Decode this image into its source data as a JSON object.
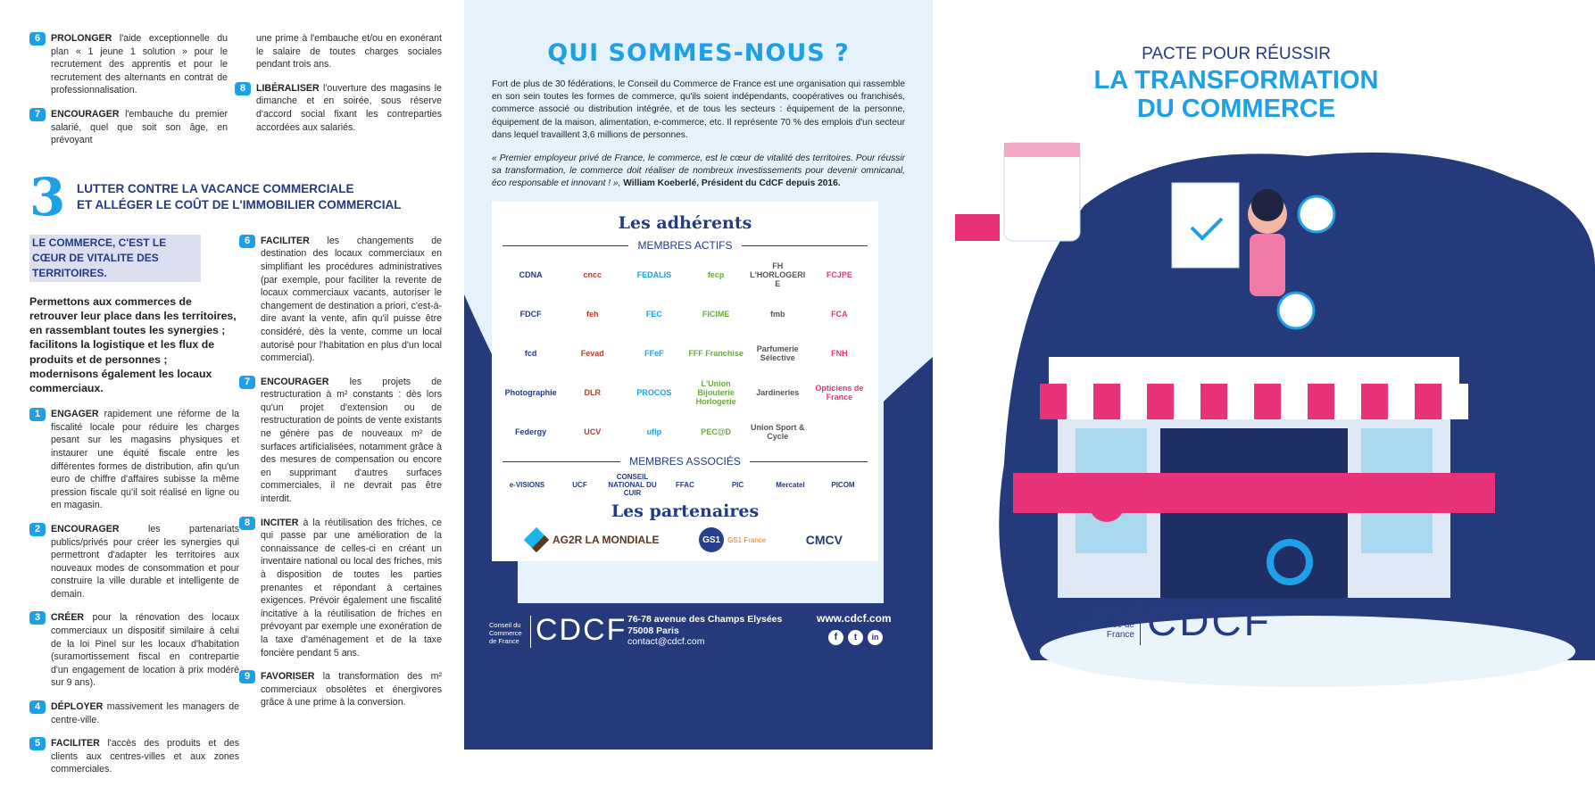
{
  "left": {
    "top_items": [
      {
        "num": "6",
        "verb": "PROLONGER",
        "text": " l'aide exceptionnelle du plan « 1 jeune 1 solution » pour le recrutement des apprentis et pour le recrutement des alternants en contrat de professionnalisation."
      },
      {
        "num": "7",
        "verb": "ENCOURAGER",
        "text": " l'embauche du premier salarié, quel que soit son âge, en prévoyant"
      },
      {
        "num": "",
        "verb": "",
        "text": "une prime à l'embauche et/ou en exonérant le salaire de toutes charges sociales pendant trois ans."
      },
      {
        "num": "8",
        "verb": "LIBÉRALISER",
        "text": " l'ouverture des magasins le dimanche et en soirée, sous réserve d'accord social fixant les contreparties accordées aux salariés."
      }
    ],
    "section3": {
      "number": "3",
      "title_line1": "LUTTER CONTRE LA VACANCE COMMERCIALE",
      "title_line2": "ET ALLÉGER LE COÛT DE L'IMMOBILIER COMMERCIAL",
      "highlight": "LE COMMERCE, C'EST LE CŒUR DE VITALITE DES TERRITOIRES.",
      "lead": "Permettons aux commerces de retrouver leur place dans les territoires, en rassemblant toutes les synergies ; facilitons la logistique et les flux de produits et de personnes ; modernisons également les locaux commerciaux.",
      "items": [
        {
          "num": "1",
          "verb": "ENGAGER",
          "text": " rapidement une réforme de la fiscalité locale pour réduire les charges pesant sur les magasins physiques et instaurer une équité fiscale entre les différentes formes de distribution, afin qu'un euro de chiffre d'affaires subisse la même pression fiscale qu'il soit réalisé en ligne ou en magasin."
        },
        {
          "num": "2",
          "verb": "ENCOURAGER",
          "text": " les partenariats publics/privés pour créer les synergies qui permettront d'adapter les territoires aux nouveaux modes de consommation et pour construire la ville durable et intelligente de demain."
        },
        {
          "num": "3",
          "verb": "CRÉER",
          "text": " pour la rénovation des locaux commerciaux un dispositif similaire à celui de la loi Pinel sur les locaux d'habitation (suramortissement fiscal en contrepartie d'un engagement de location à prix modéré sur 9 ans)."
        },
        {
          "num": "4",
          "verb": "DÉPLOYER",
          "text": " massivement les managers de centre-ville."
        },
        {
          "num": "5",
          "verb": "FACILITER",
          "text": " l'accès des produits et des clients aux centres-villes et aux zones commerciales."
        },
        {
          "num": "6",
          "verb": "FACILITER",
          "text": " les changements de destination des locaux commerciaux en simplifiant les procédures administratives (par exemple, pour faciliter la revente de locaux commerciaux vacants, autoriser le changement de destination a priori, c'est-à-dire avant la vente, afin qu'il puisse être considéré, dès la vente, comme un local autorisé pour l'habitation en plus d'un local commercial)."
        },
        {
          "num": "7",
          "verb": "ENCOURAGER",
          "text": " les projets de restructuration à m² constants : dès lors qu'un projet d'extension ou de restructuration de points de vente existants ne génère pas de nouveaux m² de surfaces artificialisées, notamment grâce à des mesures de compensation ou encore en supprimant d'autres surfaces commerciales, il ne devrait pas être interdit."
        },
        {
          "num": "8",
          "verb": "INCITER",
          "text": " à la réutilisation des friches, ce qui passe par une amélioration de la connaissance de celles-ci en créant un inventaire national ou local des friches, mis à disposition de toutes les parties prenantes et répondant à certaines exigences. Prévoir également une fiscalité incitative à la réutilisation de friches en prévoyant par exemple une exonération de la taxe d'aménagement et de la taxe foncière pendant 5 ans."
        },
        {
          "num": "9",
          "verb": "FAVORISER",
          "text": " la transformation des m² commerciaux obsolètes et énergivores grâce à une prime à la conversion."
        }
      ]
    }
  },
  "center": {
    "title": "QUI SOMMES-NOUS ?",
    "intro": "Fort de plus de 30 fédérations, le Conseil du Commerce de France est une organisation qui rassemble en son sein toutes les formes de commerce, qu'ils soient indépendants, coopératives ou franchisés, commerce associé ou distribution intégrée, et de tous les secteurs : équipement de la personne, équipement de la maison, alimentation, e-commerce, etc. Il représente 70 % des emplois d'un secteur dans lequel travaillent 3,6 millions de personnes.",
    "quote": "« Premier employeur privé de France, le commerce, est le cœur de vitalité des territoires. Pour réussir sa transformation, le commerce doit réaliser de nombreux investissements pour devenir omnicanal, éco responsable et innovant ! »,",
    "quote_author": " William Koeberlé, Président du CdCF depuis 2016.",
    "adherents_title": "Les adhérents",
    "actifs_label": "MEMBRES ACTIFS",
    "actifs": [
      "CDNA",
      "cncc",
      "FEDALIS",
      "fecp",
      "FH L'HORLOGERIE",
      "FCJPE",
      "FDCF",
      "feh",
      "FEC",
      "FICIME",
      "fmb",
      "FCA",
      "fcd",
      "Fevad",
      "FFeF",
      "FFF Franchise",
      "Parfumerie Sélective",
      "FNH",
      "Photographie",
      "DLR",
      "PROCOS",
      "L'Union Bijouterie Horlogerie",
      "Jardineries",
      "Opticiens de France",
      "Federgy",
      "UCV",
      "ufip",
      "PEC@D",
      "Union Sport & Cycle"
    ],
    "associes_label": "MEMBRES ASSOCIÉS",
    "associes": [
      "e-VISIONS",
      "UCF",
      "CONSEIL NATIONAL DU CUIR",
      "FFAC",
      "PIC",
      "Mercatel",
      "PICOM"
    ],
    "partenaires_title": "Les partenaires",
    "partenaires": [
      "AG2R LA MONDIALE",
      "GS1 France",
      "CMCV"
    ],
    "footer": {
      "org_name": "Conseil du Commerce de France",
      "logo": "CDCF",
      "address1": "76-78 avenue des Champs Elysées",
      "address2": "75008 Paris",
      "email": "contact@cdcf.com",
      "website": "www.cdcf.com",
      "social": [
        "facebook-icon",
        "twitter-icon",
        "linkedin-icon"
      ]
    }
  },
  "right": {
    "title_line1": "PACTE POUR RÉUSSIR",
    "title_line2": "LA TRANSFORMATION",
    "title_line3": "DU COMMERCE",
    "org_name": "Conseil du Commerce de France",
    "logo": "CDCF"
  },
  "colors": {
    "accent": "#1ea0e6",
    "navy": "#243a7b",
    "pink": "#e8337a",
    "light_bg": "#e5f2fb"
  }
}
